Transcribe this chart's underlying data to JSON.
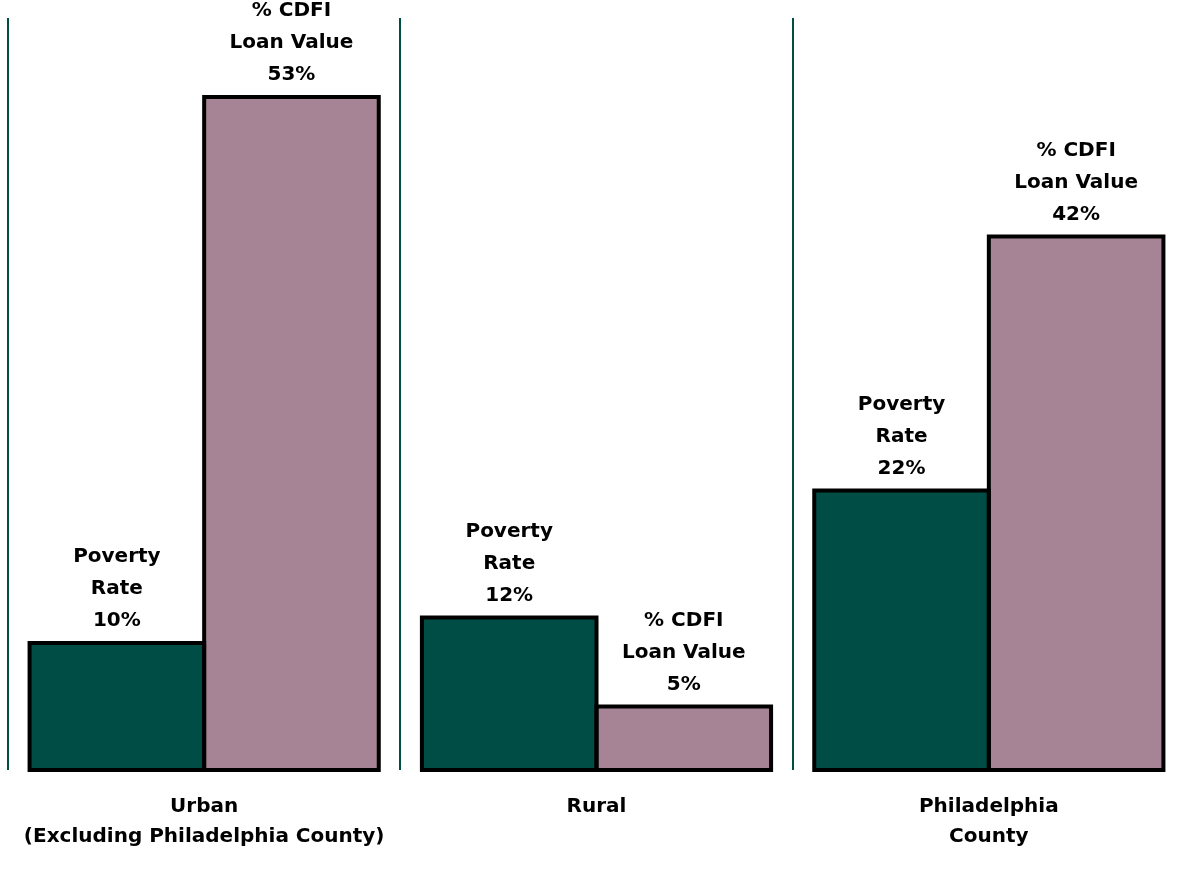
{
  "chart_data": {
    "type": "bar",
    "categories": [
      "Urban\n(Excluding Philadelphia County)",
      "Rural",
      "Philadelphia\nCounty"
    ],
    "series": [
      {
        "color": "#004d45",
        "values": [
          10,
          12,
          22
        ],
        "value_labels": [
          "Poverty Rate 10%",
          "Poverty Rate 12%",
          "Poverty Rate 22%"
        ]
      },
      {
        "color": "#a68495",
        "values": [
          53,
          5,
          42
        ],
        "value_labels": [
          "% CDFI Loan Value 53%",
          "% CDFI Loan Value 5%",
          "% CDFI Loan Value 42%"
        ]
      }
    ],
    "tick_labels": "x",
    "legend": false
  }
}
